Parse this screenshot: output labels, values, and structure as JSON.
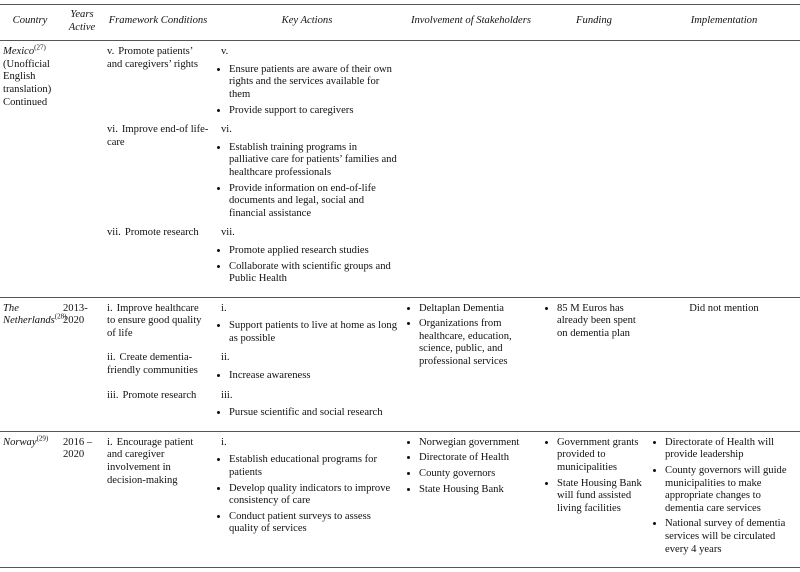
{
  "header": {
    "columns": [
      "Country",
      "Years Active",
      "Framework Conditions",
      "Key Actions",
      "Involvement of Stakeholders",
      "Funding",
      "Implementation"
    ]
  },
  "table": {
    "rows": [
      {
        "country": "Mexico",
        "ref": "(27)",
        "notes": [
          "(Unofficial English translation)",
          "Continued"
        ],
        "framework": [
          {
            "num": "v.",
            "text": "Promote patients’ and caregivers’ rights"
          },
          {
            "num": "vi.",
            "text": "Improve end-of life-care"
          },
          {
            "num": "vii.",
            "text": "Promote research"
          }
        ],
        "actions": [
          {
            "num": "v.",
            "bullets": [
              "Ensure patients are aware of their own rights and the services available for them",
              "Provide support to caregivers"
            ]
          },
          {
            "num": "vi.",
            "bullets": [
              "Establish training programs in palliative care for patients’ families and healthcare professionals",
              "Provide information on end-of-life documents and legal, social and financial assistance"
            ]
          },
          {
            "num": "vii.",
            "bullets": [
              "Promote applied research studies",
              "Collaborate with scientific groups and Public Health"
            ]
          }
        ],
        "stakeholders": [],
        "funding": [],
        "implementation": []
      },
      {
        "country": "The Netherlands",
        "ref": "(28)",
        "notes": [],
        "years": "2013-2020",
        "framework": [
          {
            "num": "i.",
            "text": "Improve healthcare to ensure good quality of life"
          },
          {
            "num": "ii.",
            "text": "Create dementia-friendly communities"
          },
          {
            "num": "iii.",
            "text": "Promote research"
          }
        ],
        "actions": [
          {
            "num": "i.",
            "bullets": [
              "Support patients to live at home as long as possible"
            ]
          },
          {
            "num": "ii.",
            "bullets": [
              "Increase awareness"
            ]
          },
          {
            "num": "iii.",
            "bullets": [
              "Pursue scientific and social research"
            ]
          }
        ],
        "stakeholders": [
          "Deltaplan Dementia",
          "Organizations from healthcare, education, science, public, and professional services"
        ],
        "funding": [
          "85 M Euros has already been spent on dementia plan"
        ],
        "implementation_text": "Did not mention",
        "implementation": []
      },
      {
        "country": "Norway",
        "ref": "(29)",
        "notes": [],
        "years": "2016 – 2020",
        "framework": [
          {
            "num": "i.",
            "text": "Encourage patient and caregiver involvement in decision-making"
          }
        ],
        "actions": [
          {
            "num": "i.",
            "bullets": [
              "Establish educational programs for patients",
              "Develop quality indicators to improve consistency of care",
              "Conduct patient surveys to assess quality of services"
            ]
          }
        ],
        "stakeholders": [
          "Norwegian government",
          "Directorate of Health",
          "County governors",
          "State Housing Bank"
        ],
        "funding": [
          "Government grants provided to municipalities",
          "State Housing Bank will fund assisted living facilities"
        ],
        "implementation": [
          "Directorate of Health will provide leadership",
          "County governors will guide municipalities to make appropriate changes to dementia care services",
          "National survey of dementia services will be circulated every 4 years"
        ]
      }
    ]
  }
}
